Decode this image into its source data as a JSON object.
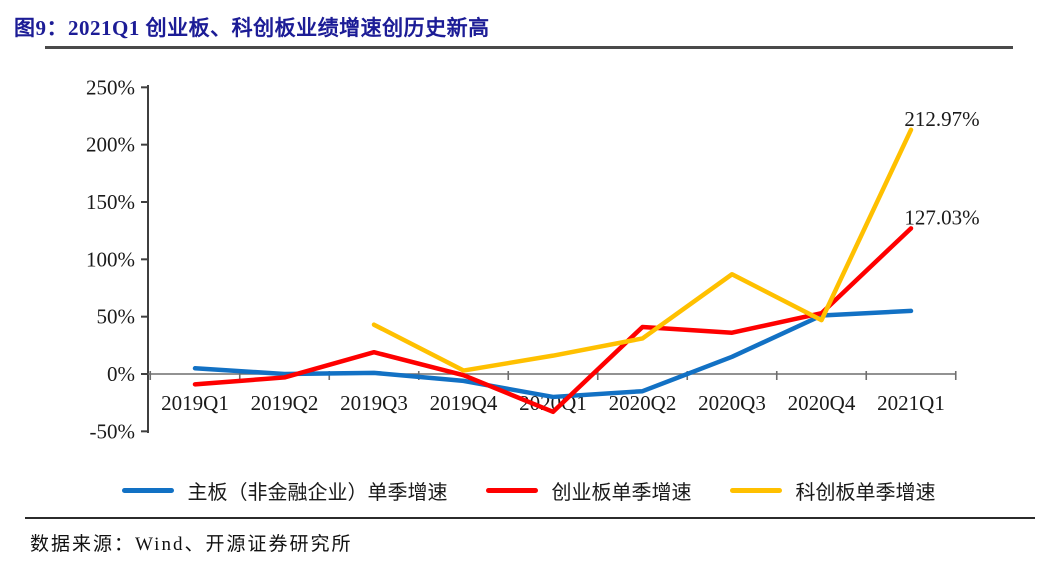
{
  "figure": {
    "title": "图9：2021Q1 创业板、科创板业绩增速创历史新高"
  },
  "chart_data": {
    "type": "line",
    "title": "2021Q1 创业板、科创板业绩增速创历史新高",
    "xlabel": "",
    "ylabel": "",
    "categories": [
      "2019Q1",
      "2019Q2",
      "2019Q3",
      "2019Q4",
      "2020Q1",
      "2020Q2",
      "2020Q3",
      "2020Q4",
      "2021Q1"
    ],
    "y_ticks": [
      {
        "value": 250,
        "label": "250%"
      },
      {
        "value": 200,
        "label": "200%"
      },
      {
        "value": 150,
        "label": "150%"
      },
      {
        "value": 100,
        "label": "100%"
      },
      {
        "value": 50,
        "label": "50%"
      },
      {
        "value": 0,
        "label": "0%"
      },
      {
        "value": -50,
        "label": "-50%"
      }
    ],
    "ylim": [
      -50,
      250
    ],
    "grid": false,
    "legend_position": "bottom",
    "series": [
      {
        "name": "主板（非金融企业）单季增速",
        "color": "#1271c4",
        "values": [
          5,
          0,
          1,
          -6,
          -20,
          -15,
          15,
          51,
          55
        ]
      },
      {
        "name": "创业板单季增速",
        "color": "#fe0000",
        "values": [
          -9,
          -3,
          19,
          -1,
          -33,
          41,
          36,
          53,
          127.03
        ]
      },
      {
        "name": "科创板单季增速",
        "color": "#ffc000",
        "values": [
          null,
          null,
          43,
          3,
          16,
          31,
          87,
          47,
          212.97
        ]
      }
    ],
    "annotations": [
      {
        "series": "科创板单季增速",
        "category": "2021Q1",
        "text": "212.97%"
      },
      {
        "series": "创业板单季增速",
        "category": "2021Q1",
        "text": "127.03%"
      }
    ]
  },
  "legend": {
    "items": [
      {
        "label": "主板（非金融企业）单季增速",
        "color": "#1271c4"
      },
      {
        "label": "创业板单季增速",
        "color": "#fe0000"
      },
      {
        "label": "科创板单季增速",
        "color": "#ffc000"
      }
    ]
  },
  "source": {
    "label": "数据来源：Wind、开源证券研究所"
  }
}
